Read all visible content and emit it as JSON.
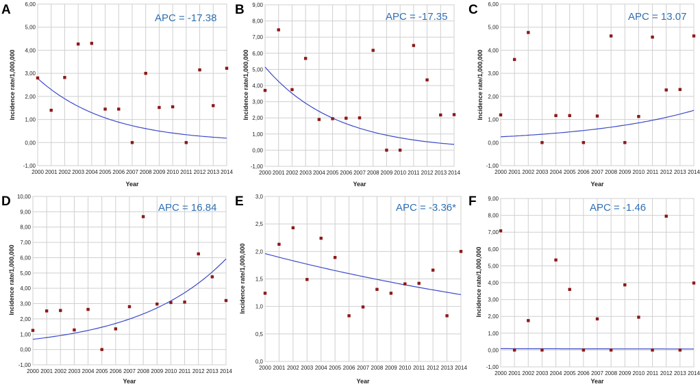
{
  "chart_data": [
    {
      "panel": "A",
      "type": "scatter",
      "apc": "APC = -17.38",
      "xlabel": "Year",
      "ylabel": "Incidence rate/1,000,000",
      "x": [
        2000,
        2001,
        2002,
        2003,
        2004,
        2005,
        2006,
        2007,
        2008,
        2009,
        2010,
        2011,
        2012,
        2013,
        2014
      ],
      "values": [
        2.8,
        1.4,
        2.82,
        4.27,
        4.3,
        1.45,
        1.45,
        0.0,
        3.0,
        1.52,
        1.55,
        0.0,
        3.15,
        1.6,
        3.22
      ],
      "fit": {
        "start": 2.78,
        "apc": -17.38
      },
      "ylim": [
        -1.0,
        6.0
      ],
      "ytick_values": [
        -1,
        0,
        1,
        2,
        3,
        4,
        5,
        6
      ],
      "ytick_labels": [
        "-1,00",
        "0,00",
        "1,00",
        "2,00",
        "3,00",
        "4,00",
        "5,00",
        "6,00"
      ]
    },
    {
      "panel": "B",
      "type": "scatter",
      "apc": "APC = -17.35",
      "xlabel": "Year",
      "ylabel": "Incidence rate/1,000,000",
      "x": [
        2000,
        2001,
        2002,
        2003,
        2004,
        2005,
        2006,
        2007,
        2008,
        2009,
        2010,
        2011,
        2012,
        2013,
        2014
      ],
      "values": [
        3.7,
        7.45,
        3.75,
        5.68,
        1.9,
        1.95,
        1.98,
        2.0,
        6.18,
        0.0,
        0.0,
        6.48,
        4.35,
        2.18,
        2.2
      ],
      "fit": {
        "start": 5.15,
        "apc": -17.35
      },
      "ylim": [
        -1.0,
        9.0
      ],
      "ytick_values": [
        -1,
        0,
        1,
        2,
        3,
        4,
        5,
        6,
        7,
        8,
        9
      ],
      "ytick_labels": [
        "-1,00",
        "0,00",
        "1,00",
        "2,00",
        "3,00",
        "4,00",
        "5,00",
        "6,00",
        "7,00",
        "8,00",
        "9,00"
      ]
    },
    {
      "panel": "C",
      "type": "scatter",
      "apc": "APC = 13.07",
      "xlabel": "Year",
      "ylabel": "Incidence rate/1,000,000",
      "x": [
        2000,
        2001,
        2002,
        2003,
        2004,
        2005,
        2006,
        2007,
        2008,
        2009,
        2010,
        2011,
        2012,
        2013,
        2014
      ],
      "values": [
        1.2,
        3.6,
        4.77,
        0.0,
        1.17,
        1.17,
        0.0,
        1.15,
        4.62,
        0.0,
        1.13,
        4.57,
        2.28,
        2.3,
        4.62
      ],
      "fit": {
        "start": 0.25,
        "apc": 13.07
      },
      "ylim": [
        -1.0,
        6.0
      ],
      "ytick_values": [
        -1,
        0,
        1,
        2,
        3,
        4,
        5,
        6
      ],
      "ytick_labels": [
        "-1,00",
        "0,00",
        "1,00",
        "2,00",
        "3,00",
        "4,00",
        "5,00",
        "6,00"
      ]
    },
    {
      "panel": "D",
      "type": "scatter",
      "apc": "APC = 16.84",
      "xlabel": "Year",
      "ylabel": "Incidence rate/1,000,000",
      "x": [
        2000,
        2001,
        2002,
        2003,
        2004,
        2005,
        2006,
        2007,
        2008,
        2009,
        2010,
        2011,
        2012,
        2013,
        2014
      ],
      "values": [
        1.25,
        2.52,
        2.55,
        1.28,
        2.62,
        0.0,
        1.35,
        2.8,
        8.68,
        2.97,
        3.07,
        3.1,
        6.25,
        4.75,
        3.2
      ],
      "fit": {
        "start": 0.67,
        "apc": 16.84
      },
      "ylim": [
        -1.0,
        10.0
      ],
      "ytick_values": [
        -1,
        0,
        1,
        2,
        3,
        4,
        5,
        6,
        7,
        8,
        9,
        10
      ],
      "ytick_labels": [
        "-1,00",
        "0,00",
        "1,00",
        "2,00",
        "3,00",
        "4,00",
        "5,00",
        "6,00",
        "7,00",
        "8,00",
        "9,00",
        "10,00"
      ]
    },
    {
      "panel": "E",
      "type": "scatter",
      "apc": "APC = -3.36*",
      "xlabel": "Year",
      "ylabel": "Incidence rate/1,000,000",
      "x": [
        2000,
        2001,
        2002,
        2003,
        2004,
        2005,
        2006,
        2007,
        2008,
        2009,
        2010,
        2011,
        2012,
        2013,
        2014
      ],
      "values": [
        1.24,
        2.13,
        2.43,
        1.49,
        2.24,
        1.89,
        0.83,
        0.99,
        1.31,
        1.24,
        1.41,
        1.42,
        1.66,
        0.83,
        2.0
      ],
      "fit": {
        "start": 1.96,
        "apc": -3.36
      },
      "ylim": [
        0.0,
        3.0
      ],
      "ytick_values": [
        0,
        0.5,
        1,
        1.5,
        2,
        2.5,
        3
      ],
      "ytick_labels": [
        "0,0",
        "0,5",
        "1,0",
        "1,5",
        "2,0",
        "2,5",
        "3,0"
      ]
    },
    {
      "panel": "F",
      "type": "scatter",
      "apc": "APC = -1.46",
      "xlabel": "Year",
      "ylabel": "Incidence rate/1,000,000",
      "x": [
        2000,
        2001,
        2002,
        2003,
        2004,
        2005,
        2006,
        2007,
        2008,
        2009,
        2010,
        2011,
        2012,
        2013,
        2014
      ],
      "values": [
        7.08,
        0.0,
        1.75,
        0.0,
        5.35,
        3.6,
        0.0,
        1.85,
        0.0,
        3.87,
        1.95,
        0.0,
        7.95,
        0.0,
        3.98
      ],
      "fit": {
        "start": 0.08,
        "apc": -1.46
      },
      "ylim": [
        -1.0,
        9.0
      ],
      "ytick_values": [
        -1,
        0,
        1,
        2,
        3,
        4,
        5,
        6,
        7,
        8,
        9
      ],
      "ytick_labels": [
        "-1,00",
        "0,00",
        "1,00",
        "2,00",
        "3,00",
        "4,00",
        "5,00",
        "6,00",
        "7,00",
        "8,00",
        "9,00"
      ]
    }
  ]
}
